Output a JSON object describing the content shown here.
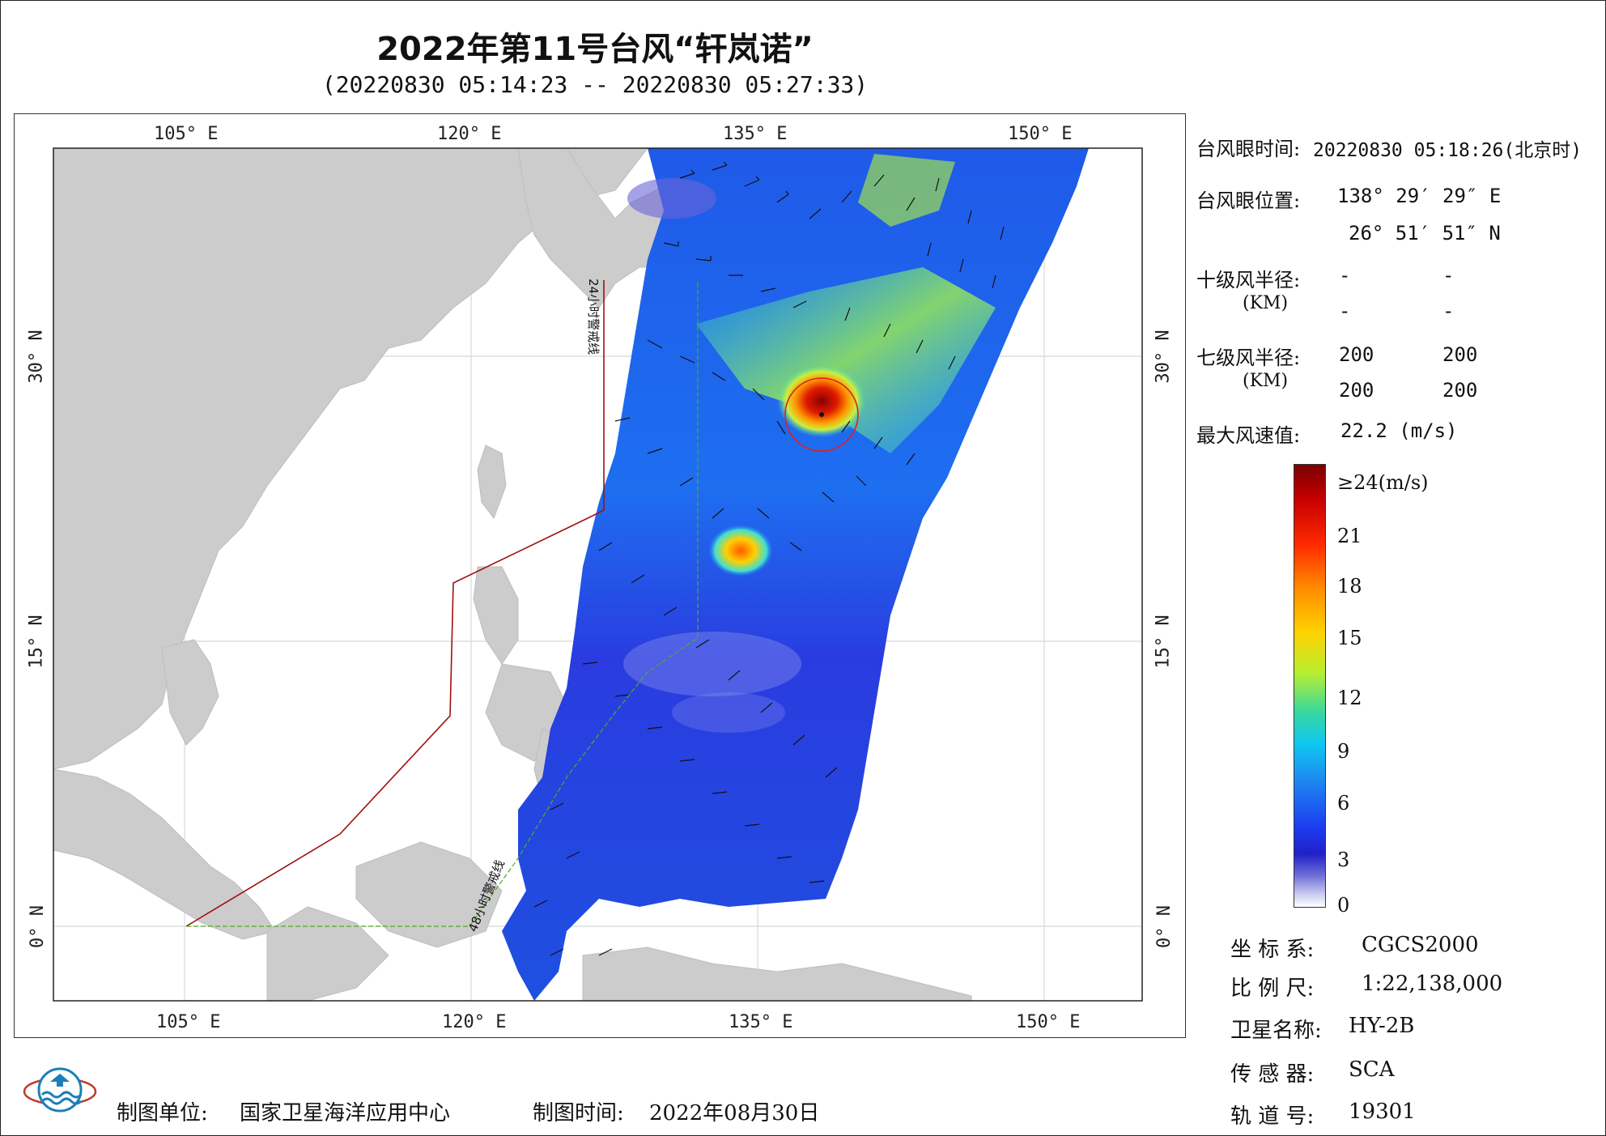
{
  "title": "2022年第11号台风“轩岚诺”",
  "subtitle": "(20220830 05:14:23 -- 20220830 05:27:33)",
  "map": {
    "lon_ticks": [
      "105° E",
      "120° E",
      "135° E",
      "150° E"
    ],
    "lat_ticks": [
      "30° N",
      "15° N",
      "0° N"
    ],
    "warning_line_24h": "24小时警戒线",
    "warning_line_48h": "48小时警戒线",
    "colors": {
      "land": "#cccccc",
      "sea": "#ffffff",
      "warning_24h": "#a01010",
      "warning_48h": "#4caf20",
      "eye_circle": "#e02020"
    }
  },
  "info": {
    "eye_time_label": "台风眼时间:",
    "eye_time_value": "20220830 05:18:26(北京时)",
    "eye_pos_label": "台风眼位置:",
    "eye_lon": "138° 29′ 29″ E",
    "eye_lat": "26° 51′ 51″ N",
    "r10_label": "十级风半径:",
    "km": "(KM)",
    "r10_values": [
      "-",
      "-",
      "-",
      "-"
    ],
    "r7_label": "七级风半径:",
    "r7_values": [
      "200",
      "200",
      "200",
      "200"
    ],
    "max_wind_label": "最大风速值:",
    "max_wind_value": "22.2  (m/s)"
  },
  "colorbar": {
    "labels": [
      "≥24(m/s)",
      "21",
      "18",
      "15",
      "12",
      "9",
      "6",
      "3",
      "0"
    ]
  },
  "meta": {
    "coord_label": "坐 标 系:",
    "coord_value": "CGCS2000",
    "scale_label": "比 例 尺:",
    "scale_value": "1:22,138,000",
    "sat_label": "卫星名称:",
    "sat_value": "HY-2B",
    "sensor_label": "传 感 器:",
    "sensor_value": "SCA",
    "orbit_label": "轨 道 号:",
    "orbit_value": "19301"
  },
  "footer": {
    "producer_label": "制图单位:",
    "producer_value": "国家卫星海洋应用中心",
    "date_label": "制图时间:",
    "date_value": "2022年08月30日"
  }
}
